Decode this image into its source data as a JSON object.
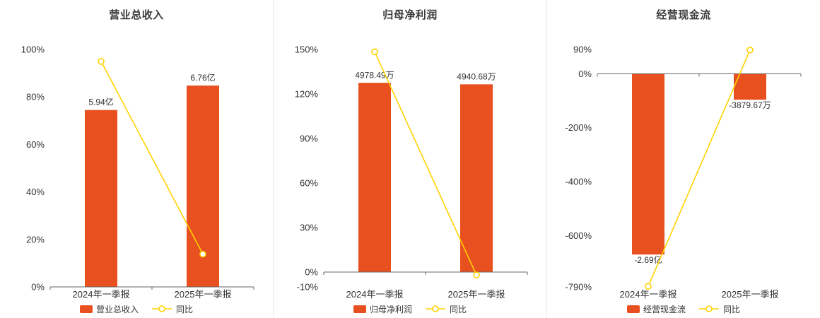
{
  "page": {
    "background": "#ffffff"
  },
  "colors": {
    "bar": "#e8501f",
    "line": "#ffd200",
    "marker_fill": "#ffffff",
    "axis": "#666666",
    "text": "#333333",
    "divider": "#e8e8e8"
  },
  "chart_data": [
    {
      "type": "bar",
      "title": "营业总收入",
      "categories": [
        "2024年一季报",
        "2025年一季报"
      ],
      "legend": [
        "营业总收入",
        "同比"
      ],
      "grid": false,
      "legend_position": "bottom",
      "y_axis": {
        "min": 0,
        "max": 100,
        "unit": "%",
        "ticks": [
          {
            "v": 100,
            "label": "100%"
          },
          {
            "v": 80,
            "label": "80%"
          },
          {
            "v": 60,
            "label": "60%"
          },
          {
            "v": 40,
            "label": "40%"
          },
          {
            "v": 20,
            "label": "20%"
          },
          {
            "v": 0,
            "label": "0%"
          }
        ]
      },
      "series": [
        {
          "name": "营业总收入",
          "type": "bar",
          "labels": [
            "5.94亿",
            "6.76亿"
          ],
          "axis_values": [
            74.5,
            84.8
          ]
        },
        {
          "name": "同比",
          "type": "line",
          "axis_values": [
            95,
            13.8
          ]
        }
      ]
    },
    {
      "type": "bar",
      "title": "归母净利润",
      "categories": [
        "2024年一季报",
        "2025年一季报"
      ],
      "legend": [
        "归母净利润",
        "同比"
      ],
      "grid": false,
      "legend_position": "bottom",
      "y_axis": {
        "min": -10,
        "max": 150,
        "unit": "%",
        "ticks": [
          {
            "v": 150,
            "label": "150%"
          },
          {
            "v": 120,
            "label": "120%"
          },
          {
            "v": 90,
            "label": "90%"
          },
          {
            "v": 60,
            "label": "60%"
          },
          {
            "v": 30,
            "label": "30%"
          },
          {
            "v": 0,
            "label": "0%"
          },
          {
            "v": -10,
            "label": "-10%"
          }
        ]
      },
      "series": [
        {
          "name": "归母净利润",
          "type": "bar",
          "labels": [
            "4978.49万",
            "4940.68万"
          ],
          "axis_values": [
            127.5,
            126.5
          ]
        },
        {
          "name": "同比",
          "type": "line",
          "axis_values": [
            148.5,
            -2
          ]
        }
      ]
    },
    {
      "type": "bar",
      "title": "经营现金流",
      "categories": [
        "2024年一季报",
        "2025年一季报"
      ],
      "legend": [
        "经营现金流",
        "同比"
      ],
      "grid": false,
      "legend_position": "bottom",
      "y_axis": {
        "min": -790,
        "max": 90,
        "unit": "%",
        "ticks": [
          {
            "v": 90,
            "label": "90%"
          },
          {
            "v": 0,
            "label": "0%"
          },
          {
            "v": -200,
            "label": "-200%"
          },
          {
            "v": -400,
            "label": "-400%"
          },
          {
            "v": -600,
            "label": "-600%"
          },
          {
            "v": -790,
            "label": "-790%"
          }
        ]
      },
      "series": [
        {
          "name": "经营现金流",
          "type": "bar",
          "labels": [
            "-2.69亿",
            "-3879.67万"
          ],
          "axis_values": [
            -670,
            -96
          ]
        },
        {
          "name": "同比",
          "type": "line",
          "axis_values": [
            -788,
            88
          ]
        }
      ]
    }
  ]
}
